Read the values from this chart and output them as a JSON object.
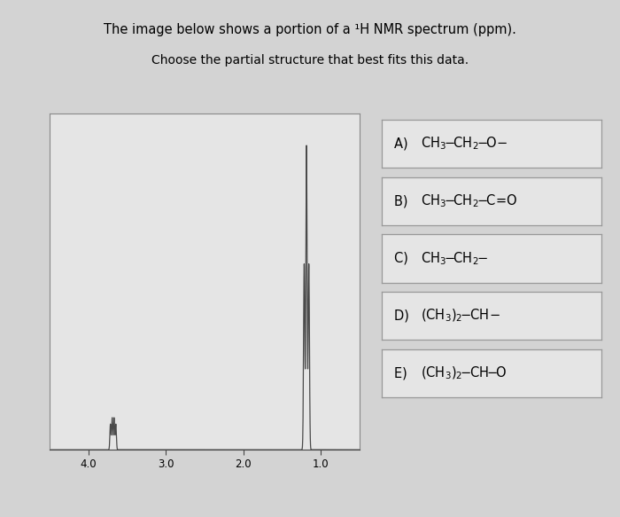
{
  "title1": "The image below shows a portion of a ¹H NMR spectrum (ppm).",
  "title2": "Choose the partial structure that best fits this data.",
  "bg_color": "#d3d3d3",
  "plot_bg_color": "#e5e5e5",
  "box_bg_color": "#e5e5e5",
  "xmin": 4.5,
  "xmax": 0.5,
  "ymin": 0,
  "ymax": 1.05,
  "peak_color": "#4a4a4a",
  "tick_color": "#444444",
  "spine_color": "#888888",
  "prefixes": [
    "A) ",
    "B) ",
    "C) ",
    "D) ",
    "E) "
  ],
  "option_labels": [
    "CH₃-CH₂-O-",
    "CH₃-CH₂-C=O",
    "CH₃-CH₂-",
    "(CH₃)₂-CH-",
    "(CH₃)₂-CH-O"
  ],
  "subscripts_A": [
    "3",
    "2"
  ],
  "subscripts_B": [
    "3",
    "2"
  ],
  "subscripts_C": [
    "3",
    "2"
  ],
  "subscripts_D": [
    "3",
    "2"
  ],
  "subscripts_E": [
    "3",
    "2"
  ]
}
